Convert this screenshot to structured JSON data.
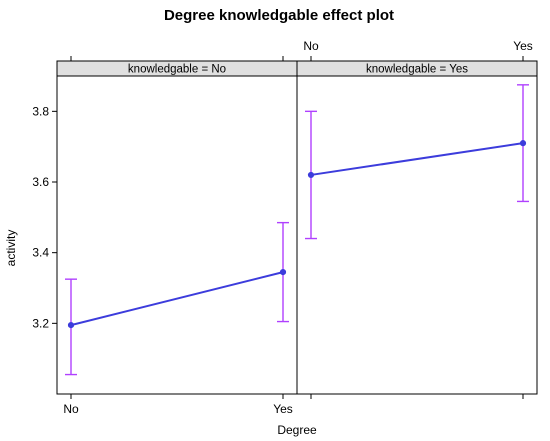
{
  "chart_data": {
    "type": "line",
    "title": "Degree knowledgable effect plot",
    "xlabel": "Degree",
    "ylabel": "activity",
    "categories": [
      "No",
      "Yes"
    ],
    "yticks": [
      3.2,
      3.4,
      3.6,
      3.8
    ],
    "ylim": [
      3.0,
      3.9
    ],
    "grid": false,
    "panels": [
      {
        "strip": "knowledgable = No",
        "values": [
          3.195,
          3.345
        ],
        "lower": [
          3.055,
          3.205
        ],
        "upper": [
          3.325,
          3.485
        ]
      },
      {
        "strip": "knowledgable = Yes",
        "values": [
          3.62,
          3.71
        ],
        "lower": [
          3.44,
          3.545
        ],
        "upper": [
          3.8,
          3.875
        ]
      }
    ],
    "colors": {
      "line": "#3c3cdc",
      "ci": "#b040ff",
      "strip": "#e0e0e0",
      "frame": "#000000"
    }
  }
}
